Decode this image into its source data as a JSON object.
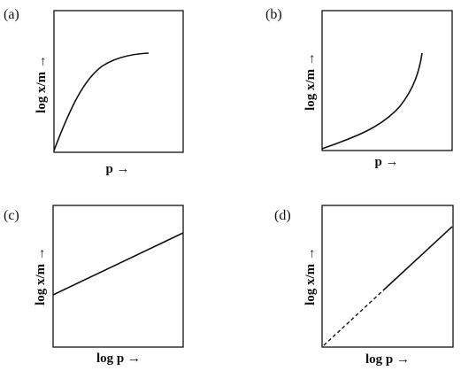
{
  "panels": [
    {
      "label": "(a)",
      "ylabel": "log x/m →",
      "xlabel": "p →"
    },
    {
      "label": "(b)",
      "ylabel": "log x/m →",
      "xlabel": "p →"
    },
    {
      "label": "(c)",
      "ylabel": "log x/m →",
      "xlabel": "log p →"
    },
    {
      "label": "(d)",
      "ylabel": "log x/m →",
      "xlabel": "log p →"
    }
  ]
}
